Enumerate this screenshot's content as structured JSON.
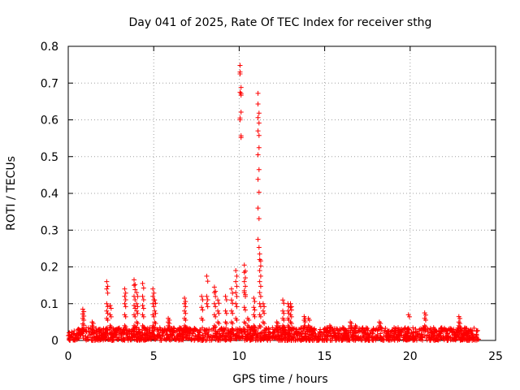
{
  "chart_data": {
    "type": "scatter",
    "title": "Day 041 of 2025, Rate Of TEC Index for receiver sthg",
    "xlabel": "GPS time / hours",
    "ylabel": "ROTI / TECUs",
    "xlim": [
      0,
      25
    ],
    "ylim": [
      0,
      0.8
    ],
    "x_ticks": [
      0,
      5,
      10,
      15,
      20,
      25
    ],
    "y_ticks": [
      0,
      0.1,
      0.2,
      0.3,
      0.4,
      0.5,
      0.6,
      0.7,
      0.8
    ],
    "x_tick_labels": [
      "0",
      "5",
      "10",
      "15",
      "20",
      "25"
    ],
    "y_tick_labels": [
      "0",
      "0.1",
      "0.2",
      "0.3",
      "0.4",
      "0.5",
      "0.6",
      "0.7",
      "0.8"
    ],
    "grid": true,
    "marker": "+",
    "color": "#ff0000",
    "baseline": {
      "x_range": [
        0,
        24
      ],
      "y_range": [
        0.0,
        0.035
      ]
    },
    "spikes": [
      {
        "x": 0.85,
        "values": [
          0.03,
          0.045,
          0.06,
          0.072,
          0.085
        ]
      },
      {
        "x": 1.4,
        "values": [
          0.03,
          0.04,
          0.05
        ]
      },
      {
        "x": 2.25,
        "values": [
          0.03,
          0.06,
          0.08,
          0.1,
          0.14,
          0.16
        ]
      },
      {
        "x": 2.45,
        "values": [
          0.04,
          0.07,
          0.095
        ]
      },
      {
        "x": 3.3,
        "values": [
          0.04,
          0.07,
          0.1,
          0.12,
          0.14
        ]
      },
      {
        "x": 3.85,
        "values": [
          0.04,
          0.07,
          0.095,
          0.12,
          0.15,
          0.165
        ]
      },
      {
        "x": 4.0,
        "values": [
          0.05,
          0.08,
          0.1,
          0.13
        ]
      },
      {
        "x": 4.35,
        "values": [
          0.04,
          0.07,
          0.095,
          0.12,
          0.155
        ]
      },
      {
        "x": 4.95,
        "values": [
          0.04,
          0.07,
          0.1,
          0.12,
          0.14
        ]
      },
      {
        "x": 5.05,
        "values": [
          0.05,
          0.08,
          0.11
        ]
      },
      {
        "x": 5.85,
        "values": [
          0.04,
          0.05,
          0.06
        ]
      },
      {
        "x": 6.8,
        "values": [
          0.04,
          0.06,
          0.08,
          0.1,
          0.115
        ]
      },
      {
        "x": 7.8,
        "values": [
          0.06,
          0.09,
          0.12
        ]
      },
      {
        "x": 8.1,
        "values": [
          0.1,
          0.12,
          0.175
        ]
      },
      {
        "x": 8.55,
        "values": [
          0.04,
          0.07,
          0.1,
          0.13,
          0.145
        ]
      },
      {
        "x": 8.75,
        "values": [
          0.05,
          0.08,
          0.11
        ]
      },
      {
        "x": 9.2,
        "values": [
          0.05,
          0.08,
          0.12
        ]
      },
      {
        "x": 9.55,
        "values": [
          0.05,
          0.08,
          0.11,
          0.14
        ]
      },
      {
        "x": 9.8,
        "values": [
          0.06,
          0.1,
          0.13,
          0.16,
          0.19
        ]
      },
      {
        "x": 10.05,
        "values": [
          0.605,
          0.6,
          0.675,
          0.725,
          0.73,
          0.748
        ]
      },
      {
        "x": 10.3,
        "values": [
          0.05,
          0.09,
          0.13,
          0.135,
          0.16,
          0.185,
          0.205
        ]
      },
      {
        "x": 10.5,
        "values": [
          0.04,
          0.06
        ]
      },
      {
        "x": 10.85,
        "values": [
          0.04,
          0.07,
          0.09,
          0.115
        ]
      },
      {
        "x": 11.1,
        "values": [
          0.275,
          0.36,
          0.438,
          0.505,
          0.57,
          0.606,
          0.643,
          0.672
        ]
      },
      {
        "x": 11.2,
        "values": [
          0.04,
          0.07,
          0.1,
          0.13,
          0.16,
          0.19,
          0.22,
          0.235
        ]
      },
      {
        "x": 11.4,
        "values": [
          0.05,
          0.08,
          0.1
        ]
      },
      {
        "x": 12.2,
        "values": [
          0.04,
          0.05
        ]
      },
      {
        "x": 12.55,
        "values": [
          0.04,
          0.06,
          0.08,
          0.11
        ]
      },
      {
        "x": 12.85,
        "values": [
          0.04,
          0.06,
          0.08,
          0.1
        ]
      },
      {
        "x": 13.0,
        "values": [
          0.05,
          0.07,
          0.09,
          0.1
        ]
      },
      {
        "x": 13.8,
        "values": [
          0.04,
          0.055,
          0.065
        ]
      },
      {
        "x": 14.05,
        "values": [
          0.04,
          0.06
        ]
      },
      {
        "x": 15.3,
        "values": [
          0.04
        ]
      },
      {
        "x": 16.5,
        "values": [
          0.04,
          0.05
        ]
      },
      {
        "x": 16.8,
        "values": [
          0.04
        ]
      },
      {
        "x": 18.2,
        "values": [
          0.04,
          0.05
        ]
      },
      {
        "x": 19.9,
        "values": [
          0.07
        ]
      },
      {
        "x": 20.85,
        "values": [
          0.04,
          0.06,
          0.075
        ]
      },
      {
        "x": 22.85,
        "values": [
          0.04,
          0.05,
          0.065
        ]
      }
    ]
  }
}
